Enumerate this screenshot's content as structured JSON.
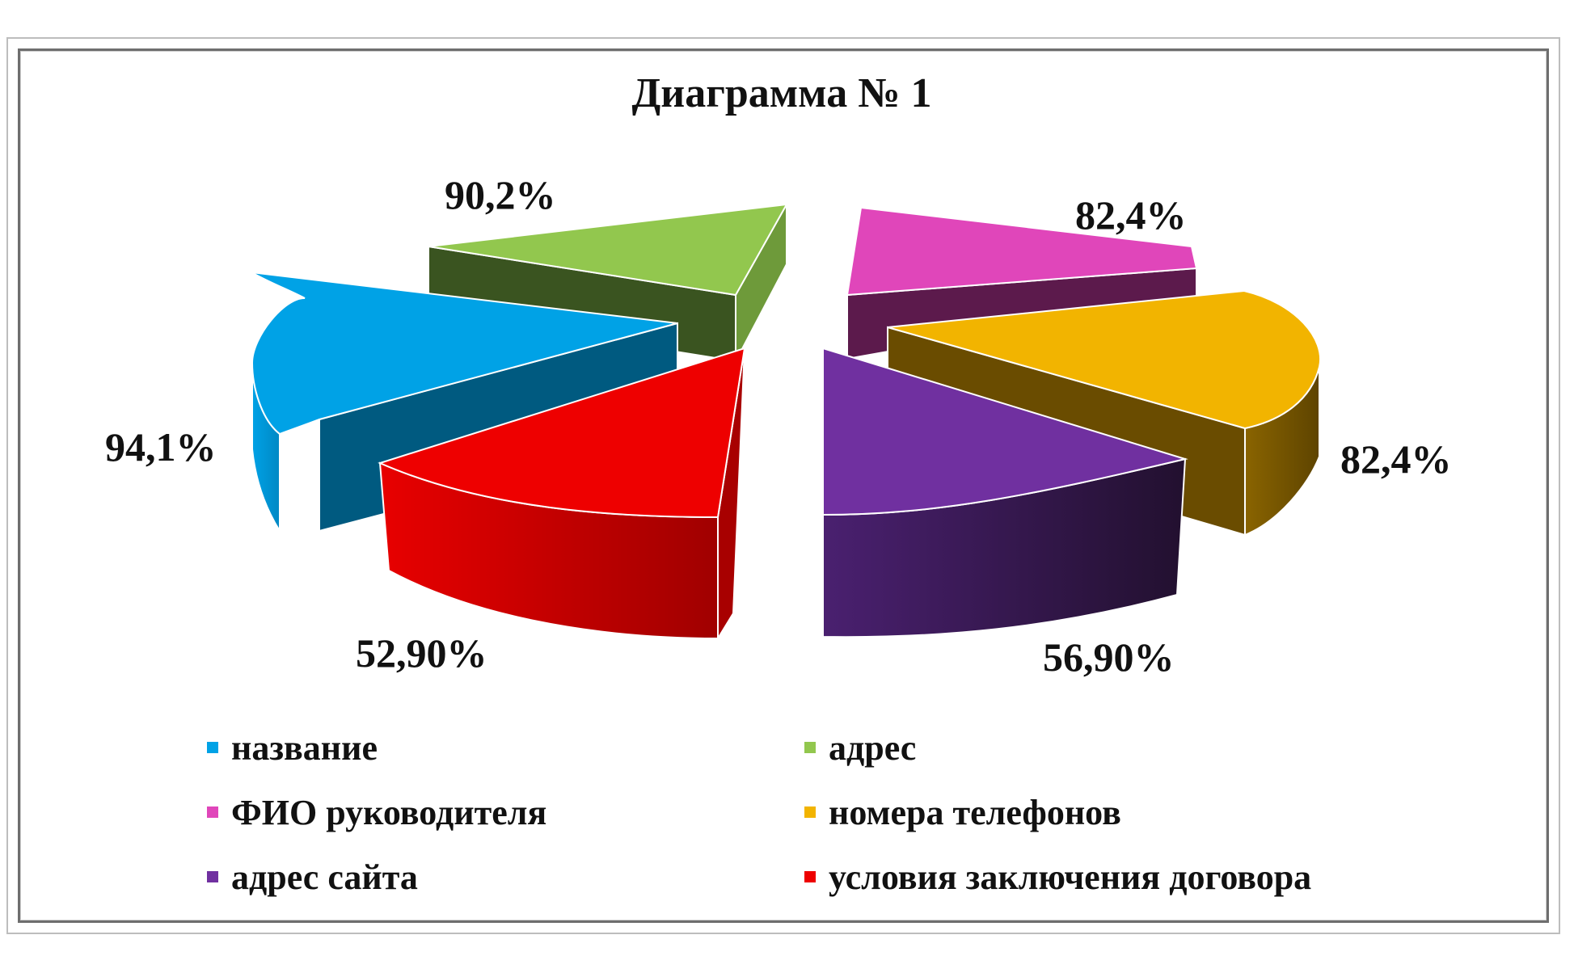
{
  "chart_data": {
    "type": "pie",
    "title": "Диаграмма № 1",
    "slices": [
      {
        "name": "название",
        "value": 94.1,
        "label": "94,1%",
        "color": "#00a2e6",
        "side": "#005a80"
      },
      {
        "name": "адрес",
        "value": 90.2,
        "label": "90,2%",
        "color": "#92c74e",
        "side": "#3a5420"
      },
      {
        "name": "ФИО руководителя",
        "value": 82.4,
        "label": "82,4%",
        "color": "#e046ba",
        "side": "#5c1a4c"
      },
      {
        "name": "номера телефонов",
        "value": 82.4,
        "label": "82,4%",
        "color": "#f2b400",
        "side": "#6a4c00"
      },
      {
        "name": "адрес сайта",
        "value": 56.9,
        "label": "56,90%",
        "color": "#7030a0",
        "side": "#2c1246"
      },
      {
        "name": "условия заключения договора",
        "value": 52.9,
        "label": "52,90%",
        "color": "#ee0000",
        "side": "#a80000"
      }
    ],
    "legend": {
      "placement": "bottom",
      "columns": 2
    }
  }
}
